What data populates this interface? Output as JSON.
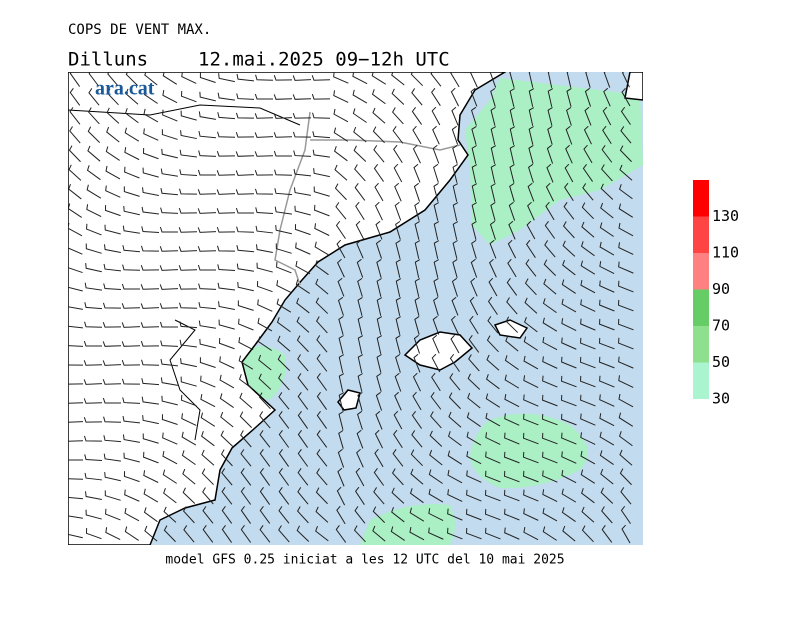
{
  "header": {
    "title": "COPS DE VENT MAX.",
    "day": "Dilluns",
    "period": "12.mai.2025 09−12h UTC",
    "logo": "ara.cat"
  },
  "footer": "model GFS 0.25 iniciat a les 12 UTC del 10 mai 2025",
  "legend": {
    "ticks": [
      30,
      50,
      70,
      90,
      110,
      130
    ],
    "colors": [
      "#aaf5d0",
      "#8ee08e",
      "#66cc66",
      "#ff8080",
      "#ff4444",
      "#ff0000"
    ]
  }
}
